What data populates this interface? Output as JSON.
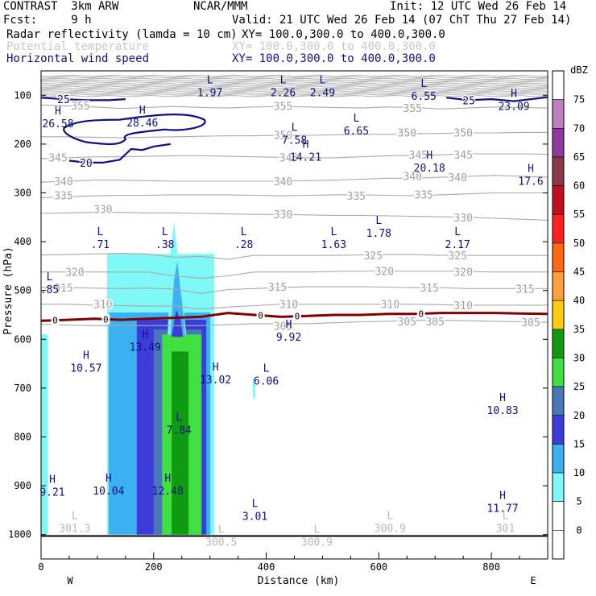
{
  "header": {
    "model": "CONTRAST  3km ARW",
    "org": "NCAR/MMM",
    "init": "Init: 12 UTC Wed 26 Feb 14",
    "fcst": "Fcst:     9 h",
    "valid": "Valid: 21 UTC Wed 26 Feb 14 (07 ChT Thu 27 Feb 14)",
    "fields": [
      {
        "name": "Radar reflectivity (lamda = 10 cm)",
        "xy": "XY= 100.0,300.0 to 400.0,300.0"
      },
      {
        "name": "Potential temperature",
        "xy": "XY= 100.0,300.0 to 400.0,300.0"
      },
      {
        "name": "Horizontal wind speed",
        "xy": "XY= 100.0,300.0 to 400.0,300.0"
      }
    ]
  },
  "chart_data": {
    "type": "cross-section",
    "xlabel": "Distance (km)",
    "ylabel": "Pressure (hPa)",
    "xlim": [
      0,
      900
    ],
    "ylim": [
      1050,
      50
    ],
    "x_ticks": [
      0,
      200,
      400,
      600,
      800
    ],
    "y_ticks": [
      100,
      200,
      300,
      400,
      500,
      600,
      700,
      800,
      900,
      1000
    ],
    "x_end_labels": {
      "left": "W",
      "right": "E"
    },
    "colorbar": {
      "title": "dBZ",
      "levels": [
        "75",
        "70",
        "65",
        "60",
        "55",
        "50",
        "45",
        "40",
        "35",
        "30",
        "25",
        "20",
        "15",
        "10",
        "5",
        "0"
      ],
      "colors": [
        "#ffffff",
        "#c080c0",
        "#8e3a9e",
        "#8b3a4a",
        "#c01020",
        "#ff2020",
        "#ff6a10",
        "#ffa040",
        "#ffcc10",
        "#109a10",
        "#40e040",
        "#4878b8",
        "#3c3cd8",
        "#3cb0f0",
        "#80f8f8",
        "#ffffff",
        "#ffffff"
      ]
    },
    "reflectivity_core": {
      "x_range_km": [
        120,
        305
      ],
      "top_hPa": 360,
      "base_hPa": 1000
    },
    "theta_contours": [
      {
        "label": "355",
        "p": [
          120,
          122,
          124,
          127,
          125,
          123,
          125,
          126,
          124,
          123,
          124,
          125,
          126,
          124,
          125,
          128,
          126,
          124,
          125,
          126
        ]
      },
      {
        "label": "350",
        "p": [
          185,
          185,
          186,
          187,
          186,
          185,
          184,
          183,
          183,
          182,
          182,
          181,
          180,
          180,
          179,
          178,
          177,
          177,
          176,
          176
        ]
      },
      {
        "label": "345",
        "p": [
          230,
          228,
          226,
          226,
          225,
          224,
          224,
          225,
          226,
          227,
          228,
          228,
          226,
          224,
          223,
          222,
          220,
          220,
          220,
          221
        ]
      },
      {
        "label": "340",
        "p": [
          278,
          276,
          274,
          274,
          275,
          276,
          276,
          276,
          276,
          276,
          275,
          274,
          272,
          270,
          270,
          268,
          266,
          264,
          266,
          268
        ]
      },
      {
        "label": "335",
        "p": [
          310,
          308,
          306,
          305,
          305,
          304,
          304,
          304,
          305,
          306,
          305,
          304,
          304,
          305,
          306,
          304,
          302,
          300,
          300,
          300
        ]
      },
      {
        "label": "330",
        "p": [
          342,
          341,
          340,
          340,
          341,
          341,
          342,
          343,
          344,
          344,
          345,
          346,
          346,
          347,
          348,
          349,
          350,
          352,
          354,
          356
        ]
      },
      {
        "label": "325",
        "p": [
          427,
          426,
          425,
          424,
          425,
          432,
          430,
          436,
          428,
          428,
          428,
          428,
          427,
          426,
          426,
          428,
          428,
          428,
          428,
          428
        ]
      },
      {
        "label": "320",
        "p": [
          462,
          462,
          462,
          462,
          462,
          470,
          475,
          470,
          462,
          462,
          462,
          461,
          460,
          460,
          460,
          460,
          461,
          462,
          462,
          462
        ]
      },
      {
        "label": "315",
        "p": [
          494,
          494,
          495,
          496,
          495,
          497,
          506,
          498,
          496,
          494,
          492,
          492,
          492,
          493,
          494,
          494,
          496,
          496,
          496,
          496
        ]
      },
      {
        "label": "310",
        "p": [
          528,
          528,
          530,
          531,
          532,
          532,
          538,
          534,
          531,
          528,
          528,
          528,
          528,
          528,
          528,
          529,
          530,
          530,
          530,
          530
        ]
      },
      {
        "label": "305",
        "p": [
          569,
          571,
          572,
          572,
          572,
          572,
          572,
          570,
          568,
          568,
          568,
          566,
          564,
          563,
          561,
          561,
          562,
          563,
          564,
          565
        ]
      }
    ],
    "theta_labels": [
      {
        "text": "355",
        "x": 70,
        "p": 121
      },
      {
        "text": "355",
        "x": 430,
        "p": 122
      },
      {
        "text": "355",
        "x": 660,
        "p": 126
      },
      {
        "text": "350",
        "x": 430,
        "p": 181
      },
      {
        "text": "350",
        "x": 650,
        "p": 176
      },
      {
        "text": "350",
        "x": 750,
        "p": 176
      },
      {
        "text": "345",
        "x": 30,
        "p": 227
      },
      {
        "text": "345",
        "x": 440,
        "p": 227
      },
      {
        "text": "345",
        "x": 670,
        "p": 222
      },
      {
        "text": "345",
        "x": 750,
        "p": 222
      },
      {
        "text": "340",
        "x": 40,
        "p": 276
      },
      {
        "text": "340",
        "x": 430,
        "p": 276
      },
      {
        "text": "340",
        "x": 660,
        "p": 265
      },
      {
        "text": "340",
        "x": 740,
        "p": 268
      },
      {
        "text": "335",
        "x": 40,
        "p": 305
      },
      {
        "text": "335",
        "x": 560,
        "p": 306
      },
      {
        "text": "335",
        "x": 680,
        "p": 303
      },
      {
        "text": "330",
        "x": 110,
        "p": 333
      },
      {
        "text": "330",
        "x": 430,
        "p": 344
      },
      {
        "text": "330",
        "x": 750,
        "p": 350
      },
      {
        "text": "325",
        "x": 590,
        "p": 428
      },
      {
        "text": "325",
        "x": 740,
        "p": 428
      },
      {
        "text": "320",
        "x": 60,
        "p": 462
      },
      {
        "text": "320",
        "x": 610,
        "p": 460
      },
      {
        "text": "320",
        "x": 750,
        "p": 462
      },
      {
        "text": "315",
        "x": 40,
        "p": 494
      },
      {
        "text": "315",
        "x": 420,
        "p": 492
      },
      {
        "text": "315",
        "x": 690,
        "p": 494
      },
      {
        "text": "315",
        "x": 860,
        "p": 496
      },
      {
        "text": "310",
        "x": 110,
        "p": 528
      },
      {
        "text": "310",
        "x": 440,
        "p": 528
      },
      {
        "text": "310",
        "x": 620,
        "p": 528
      },
      {
        "text": "310",
        "x": 750,
        "p": 530
      },
      {
        "text": "305",
        "x": 430,
        "p": 572
      },
      {
        "text": "305",
        "x": 650,
        "p": 563
      },
      {
        "text": "305",
        "x": 700,
        "p": 563
      },
      {
        "text": "305",
        "x": 870,
        "p": 565
      }
    ],
    "freezing_level": {
      "label": "0",
      "p": [
        562,
        560,
        558,
        560,
        558,
        556,
        554,
        546,
        550,
        554,
        552,
        550,
        550,
        548,
        548,
        546,
        546,
        546,
        547,
        548
      ]
    },
    "wind_contours": [
      {
        "label": "25",
        "pts": [
          [
            0,
            105
          ],
          [
            40,
            108
          ],
          [
            80,
            110
          ],
          [
            120,
            110
          ],
          [
            150,
            108
          ]
        ]
      },
      {
        "label": "20",
        "pts": [
          [
            50,
            234
          ],
          [
            80,
            238
          ],
          [
            110,
            238
          ],
          [
            140,
            232
          ],
          [
            160,
            210
          ],
          [
            180,
            212
          ],
          [
            200,
            205
          ],
          [
            230,
            200
          ]
        ]
      },
      {
        "label": "25",
        "pts": [
          [
            720,
            105
          ],
          [
            760,
            110
          ],
          [
            800,
            108
          ],
          [
            840,
            112
          ],
          [
            900,
            104
          ]
        ]
      }
    ],
    "extrema": [
      {
        "type": "H",
        "value": "26.58",
        "x": 30,
        "p": 142
      },
      {
        "type": "H",
        "value": "28.46",
        "x": 180,
        "p": 141
      },
      {
        "type": "L",
        "value": "1.97",
        "x": 300,
        "p": 79
      },
      {
        "type": "L",
        "value": "2.26",
        "x": 430,
        "p": 79
      },
      {
        "type": "L",
        "value": "2.49",
        "x": 500,
        "p": 79
      },
      {
        "type": "L",
        "value": "6.55",
        "x": 680,
        "p": 86
      },
      {
        "type": "H",
        "value": "23.09",
        "x": 840,
        "p": 107
      },
      {
        "type": "L",
        "value": "7.58",
        "x": 450,
        "p": 176
      },
      {
        "type": "L",
        "value": "6.65",
        "x": 560,
        "p": 157
      },
      {
        "type": "H",
        "value": "14.21",
        "x": 470,
        "p": 211
      },
      {
        "type": "H",
        "value": "20.18",
        "x": 690,
        "p": 233
      },
      {
        "type": "H",
        "value": "17.6",
        "x": 870,
        "p": 260
      },
      {
        "type": "L",
        "value": ".71",
        "x": 105,
        "p": 390
      },
      {
        "type": "L",
        "value": ".38",
        "x": 220,
        "p": 390
      },
      {
        "type": "L",
        "value": ".28",
        "x": 360,
        "p": 390
      },
      {
        "type": "L",
        "value": "1.63",
        "x": 520,
        "p": 390
      },
      {
        "type": "L",
        "value": "1.78",
        "x": 600,
        "p": 367
      },
      {
        "type": "L",
        "value": "2.17",
        "x": 740,
        "p": 390
      },
      {
        "type": "L",
        "value": ".85",
        "x": 15,
        "p": 482
      },
      {
        "type": "H",
        "value": "13.49",
        "x": 185,
        "p": 600
      },
      {
        "type": "H",
        "value": "9.92",
        "x": 440,
        "p": 580
      },
      {
        "type": "H",
        "value": "10.57",
        "x": 80,
        "p": 643
      },
      {
        "type": "H",
        "value": "13.02",
        "x": 310,
        "p": 667
      },
      {
        "type": "L",
        "value": "6.06",
        "x": 400,
        "p": 670
      },
      {
        "type": "H",
        "value": "10.83",
        "x": 820,
        "p": 730
      },
      {
        "type": "L",
        "value": "7.84",
        "x": 245,
        "p": 770
      },
      {
        "type": "H",
        "value": "9.21",
        "x": 20,
        "p": 897
      },
      {
        "type": "H",
        "value": "10.04",
        "x": 120,
        "p": 895
      },
      {
        "type": "H",
        "value": "12.48",
        "x": 225,
        "p": 895
      },
      {
        "type": "H",
        "value": "11.77",
        "x": 820,
        "p": 930
      },
      {
        "type": "L",
        "value": "3.01",
        "x": 380,
        "p": 947
      }
    ],
    "surface_labels": [
      {
        "type": "L",
        "value": "301.3",
        "x": 60,
        "p": 972
      },
      {
        "type": "L",
        "value": "300.5",
        "x": 320,
        "p": 1000
      },
      {
        "type": "L",
        "value": "300.9",
        "x": 490,
        "p": 1000
      },
      {
        "type": "L",
        "value": "300.9",
        "x": 620,
        "p": 972
      },
      {
        "type": "L",
        "value": "301",
        "x": 825,
        "p": 972
      }
    ]
  }
}
